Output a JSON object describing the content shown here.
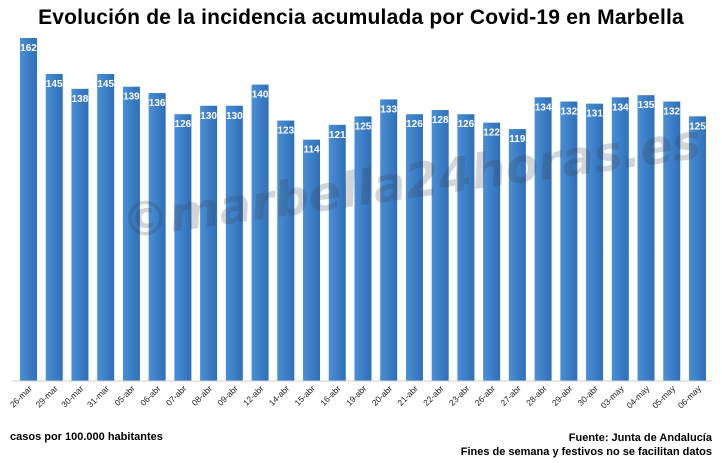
{
  "chart_data": {
    "type": "bar",
    "title": "Evolución de la incidencia acumulada por Covid-19 en Marbella",
    "categories": [
      "26-mar",
      "29-mar",
      "30-mar",
      "31-mar",
      "05-abr",
      "06-abr",
      "07-abr",
      "08-abr",
      "09-abr",
      "12-abr",
      "14-abr",
      "15-abr",
      "16-abr",
      "19-abr",
      "20-abr",
      "21-abr",
      "22-abr",
      "23-abr",
      "26-abr",
      "27-abr",
      "28-abr",
      "29-abr",
      "30-abr",
      "03-may",
      "04-may",
      "05-may",
      "06-may"
    ],
    "values": [
      162,
      145,
      138,
      145,
      139,
      136,
      126,
      130,
      130,
      140,
      123,
      114,
      121,
      125,
      133,
      126,
      128,
      126,
      122,
      119,
      134,
      132,
      131,
      134,
      135,
      132,
      125
    ],
    "ylim": [
      0,
      162
    ],
    "grid": false,
    "bar_color": "#4a8fd6",
    "bar_color_dark": "#2f6fb8",
    "value_label_color": "#ffffff"
  },
  "watermark": "©marbella24horas.es",
  "footnotes": {
    "units": "casos por 100.000 habitantes",
    "source": "Fuente: Junta de Andalucía",
    "note": "Fines de semana y festivos no se facilitan datos"
  }
}
